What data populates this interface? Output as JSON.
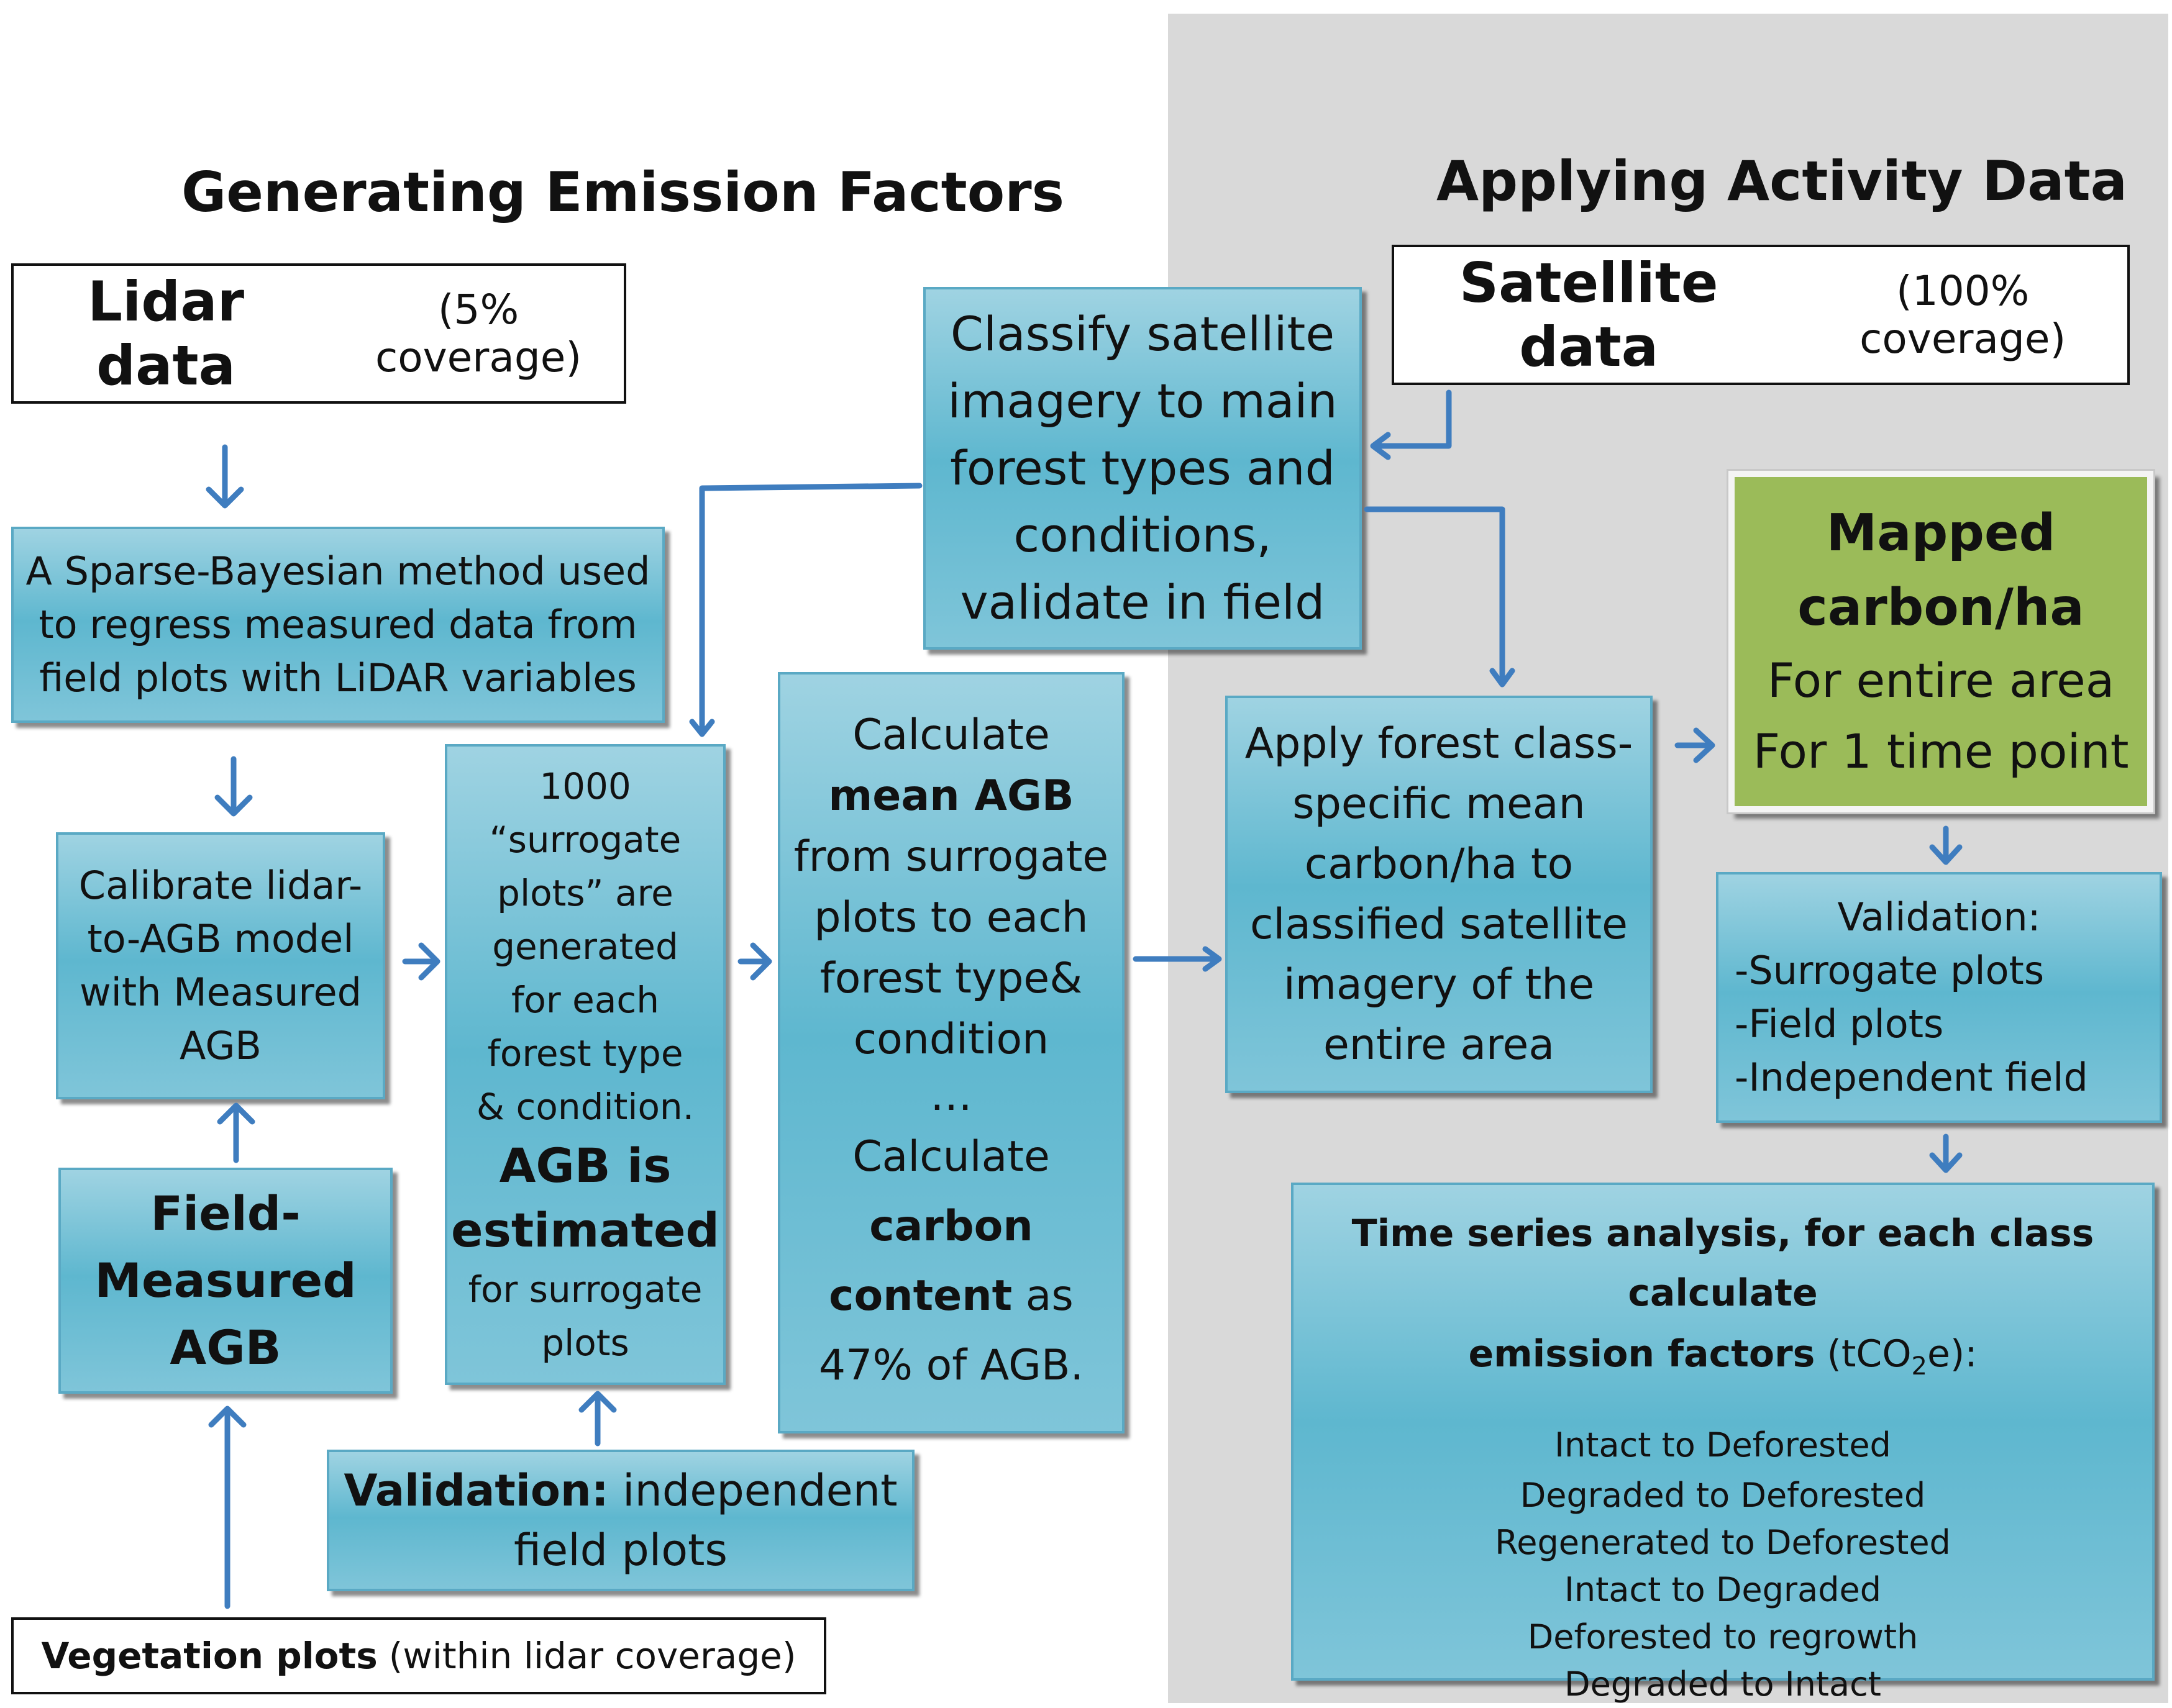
{
  "headings": {
    "left": "Generating Emission Factors",
    "right": "Applying Activity Data"
  },
  "lidar": {
    "bold": "Lidar data",
    "normal": "(5% coverage)"
  },
  "satellite": {
    "bold": "Satellite data",
    "normal": "(100% coverage)"
  },
  "sparse_bayesian": [
    "A Sparse-Bayesian method used",
    "to regress measured data from",
    "field plots with LiDAR variables"
  ],
  "calibrate": [
    "Calibrate lidar-",
    "to-AGB model",
    "with Measured",
    "AGB"
  ],
  "field_measured": [
    "Field-",
    "Measured",
    "AGB"
  ],
  "vegetation": {
    "bold": "Vegetation plots",
    "normal": "(within lidar coverage)"
  },
  "surrogate": {
    "lines": [
      "1000",
      "“surrogate",
      "plots” are",
      "generated",
      "for each",
      "forest type",
      "& condition."
    ],
    "bold": [
      "AGB is",
      "estimated"
    ],
    "tail": [
      "for surrogate",
      "plots"
    ]
  },
  "validation_left": {
    "bold": "Validation:",
    "normal": "independent",
    "line2": "field plots"
  },
  "classify": [
    "Classify satellite",
    "imagery to main",
    "forest types and",
    "conditions,",
    "validate in field"
  ],
  "mean_agb": {
    "l1": "Calculate",
    "b1": "mean AGB",
    "l2": "from surrogate",
    "l3": "plots to each",
    "l4": "forest type&",
    "l5": "condition",
    "l6": "…",
    "l7": "Calculate",
    "b2": "carbon",
    "b3": "content",
    "l8": "as",
    "l9": "47% of AGB."
  },
  "apply": [
    "Apply forest class-",
    "specific mean",
    "carbon/ha to",
    "classified satellite",
    "imagery of the",
    "entire area"
  ],
  "mapped": {
    "bold": [
      "Mapped",
      "carbon/ha"
    ],
    "normal": [
      "For entire area",
      "For 1 time point"
    ]
  },
  "validation_right": [
    "Validation:",
    "-Surrogate plots",
    "-Field plots",
    "-Independent field"
  ],
  "timeseries": {
    "title_line1": "Time series analysis, for each class calculate",
    "title_bold2": "emission factors",
    "title_unit_pre": "(tCO",
    "title_unit_sub": "2",
    "title_unit_post": "e):",
    "items": [
      "Intact to Deforested",
      "Degraded to Deforested",
      "Regenerated to Deforested",
      "Intact to Degraded",
      "Deforested to regrowth",
      "Degraded to Intact"
    ]
  },
  "colors": {
    "teal": "#5eb7cf",
    "arrow": "#3f7dbf",
    "green": "#9bbb59",
    "panel": "#d9d9d9"
  }
}
